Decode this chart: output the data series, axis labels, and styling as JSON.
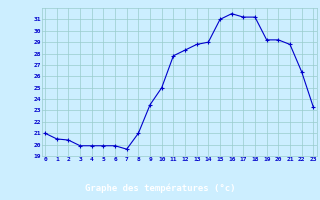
{
  "x": [
    0,
    1,
    2,
    3,
    4,
    5,
    6,
    7,
    8,
    9,
    10,
    11,
    12,
    13,
    14,
    15,
    16,
    17,
    18,
    19,
    20,
    21,
    22,
    23
  ],
  "y": [
    21.0,
    20.5,
    20.4,
    19.9,
    19.9,
    19.9,
    19.9,
    19.6,
    21.0,
    23.5,
    25.0,
    27.8,
    28.3,
    28.8,
    29.0,
    31.0,
    31.5,
    31.2,
    31.2,
    29.2,
    29.2,
    28.8,
    26.4,
    23.3
  ],
  "line_color": "#0000cc",
  "marker": "+",
  "marker_size": 3,
  "bg_color": "#cceeff",
  "grid_color": "#99cccc",
  "tick_label_color": "#0000cc",
  "xlabel": "Graphe des températures (°c)",
  "xlabel_bg": "#0000aa",
  "xlabel_fg": "#ffffff",
  "ylim": [
    19,
    32
  ],
  "yticks": [
    19,
    20,
    21,
    22,
    23,
    24,
    25,
    26,
    27,
    28,
    29,
    30,
    31
  ],
  "xticks": [
    0,
    1,
    2,
    3,
    4,
    5,
    6,
    7,
    8,
    9,
    10,
    11,
    12,
    13,
    14,
    15,
    16,
    17,
    18,
    19,
    20,
    21,
    22,
    23
  ],
  "xlim_min": -0.3,
  "xlim_max": 23.3
}
